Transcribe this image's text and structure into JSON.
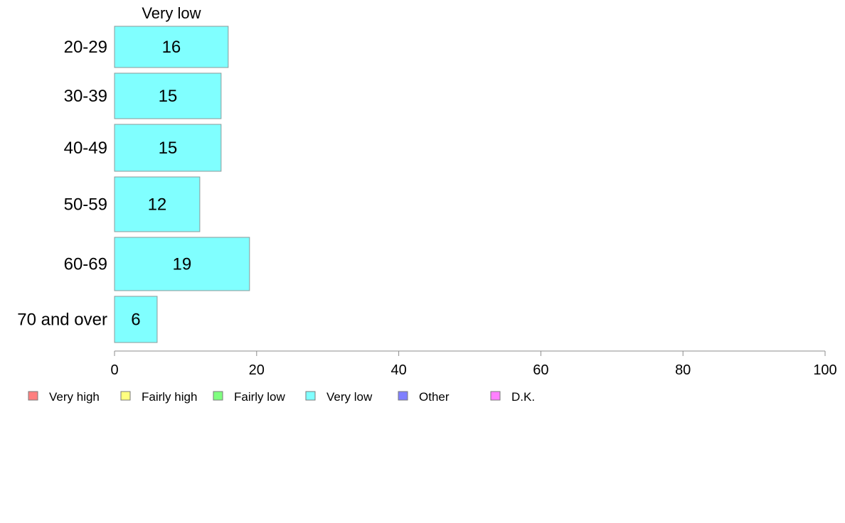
{
  "chart_data": {
    "type": "bar",
    "orientation": "horizontal",
    "stacked": true,
    "categories": [
      "20-29",
      "30-39",
      "40-49",
      "50-59",
      "60-69",
      "70 and over"
    ],
    "series": [
      {
        "name": "Very low",
        "values": [
          16,
          15,
          15,
          12,
          19,
          6
        ]
      }
    ],
    "segment_header": "Very low",
    "xlim": [
      0,
      100
    ],
    "xticks": [
      0,
      20,
      40,
      60,
      80,
      100
    ],
    "grid": false,
    "legend": {
      "placement": "bottom",
      "entries": [
        {
          "label": "Very high",
          "color": "#ff8080"
        },
        {
          "label": "Fairly high",
          "color": "#ffff80"
        },
        {
          "label": "Fairly low",
          "color": "#80ff80"
        },
        {
          "label": "Very low",
          "color": "#80ffff"
        },
        {
          "label": "Other",
          "color": "#8080ff"
        },
        {
          "label": "D.K.",
          "color": "#ff80ff"
        }
      ]
    }
  }
}
